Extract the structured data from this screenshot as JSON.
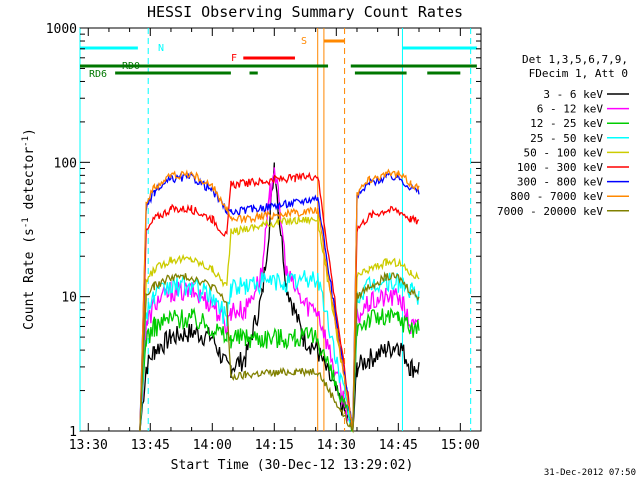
{
  "chart_data": {
    "type": "line",
    "title": "HESSI Observing Summary Count Rates",
    "xlabel": "Start Time (30-Dec-12 13:29:02)",
    "ylabel_main": "Count Rate (s",
    "ylabel_sup1": "-1",
    "ylabel_mid": " detector",
    "ylabel_sup2": "-1",
    "ylabel_end": ")",
    "yscale": "log",
    "ylim": [
      1,
      1000
    ],
    "xlim_minutes": [
      -2,
      95
    ],
    "x_ticks": [
      {
        "m": 0,
        "label": "13:30"
      },
      {
        "m": 15,
        "label": "13:45"
      },
      {
        "m": 30,
        "label": "14:00"
      },
      {
        "m": 45,
        "label": "14:15"
      },
      {
        "m": 60,
        "label": "14:30"
      },
      {
        "m": 75,
        "label": "14:45"
      },
      {
        "m": 90,
        "label": "15:00"
      }
    ],
    "y_ticks": [
      {
        "v": 1,
        "label": "1"
      },
      {
        "v": 10,
        "label": "10"
      },
      {
        "v": 100,
        "label": "100"
      },
      {
        "v": 1000,
        "label": "1000"
      }
    ],
    "legend_header": [
      "Det 1,3,5,6,7,9,",
      "FDecim 1, Att 0"
    ],
    "series": [
      {
        "name": "3 - 6 keV",
        "color": "#000000",
        "x": [
          12.5,
          14,
          16,
          20,
          25,
          30,
          33.5,
          34.5,
          38,
          42,
          44,
          45,
          46,
          48,
          52,
          55.5,
          64,
          65,
          68,
          72,
          75,
          76,
          78,
          80
        ],
        "y": [
          1,
          3,
          4,
          5,
          5.5,
          5,
          3,
          3,
          3.5,
          10,
          40,
          100,
          45,
          12,
          5,
          4,
          1,
          3,
          3.5,
          4,
          4.5,
          4,
          3,
          3
        ]
      },
      {
        "name": "6 - 12 keV",
        "color": "#ff00ff",
        "x": [
          12.5,
          14,
          16,
          20,
          25,
          30,
          33.5,
          34.5,
          38,
          42,
          44,
          45,
          46,
          48,
          52,
          55.5,
          64,
          65,
          68,
          72,
          75,
          76,
          78,
          80
        ],
        "y": [
          1,
          6,
          9,
          11,
          11,
          9,
          6,
          8,
          8,
          15,
          60,
          95,
          55,
          15,
          9,
          8,
          1,
          7,
          9,
          10,
          10,
          9,
          6,
          6
        ]
      },
      {
        "name": "12 - 25 keV",
        "color": "#00cc00",
        "x": [
          12.5,
          14,
          16,
          20,
          25,
          30,
          33.5,
          34.5,
          38,
          42,
          46,
          50,
          55.5,
          64,
          65,
          68,
          72,
          75,
          78,
          80
        ],
        "y": [
          1,
          5,
          6,
          7,
          7,
          6,
          5,
          5,
          5,
          5,
          5,
          5,
          5,
          1,
          6,
          7,
          7,
          7,
          6,
          6
        ]
      },
      {
        "name": "25 - 50 keV",
        "color": "#00ffff",
        "x": [
          12.5,
          14,
          16,
          20,
          25,
          30,
          33.5,
          34.5,
          38,
          42,
          46,
          50,
          55.5,
          64,
          65,
          68,
          72,
          75,
          78,
          80
        ],
        "y": [
          1,
          8,
          10,
          12,
          12,
          10,
          7,
          12,
          12,
          13,
          13,
          13,
          14,
          1,
          10,
          12,
          13,
          13,
          11,
          10
        ]
      },
      {
        "name": "50 - 100 keV",
        "color": "#cccc00",
        "x": [
          12.5,
          14,
          16,
          20,
          25,
          30,
          33.5,
          34.5,
          38,
          42,
          46,
          50,
          55.5,
          64,
          65,
          68,
          72,
          75,
          78,
          80
        ],
        "y": [
          1,
          13,
          16,
          19,
          19,
          16,
          12,
          30,
          32,
          34,
          36,
          37,
          38,
          1,
          14,
          16,
          18,
          18,
          15,
          14
        ]
      },
      {
        "name": "100 - 300 keV",
        "color": "#ff0000",
        "x": [
          12.5,
          14,
          16,
          20,
          25,
          30,
          33.5,
          34.5,
          38,
          42,
          46,
          50,
          55.5,
          64,
          65,
          68,
          72,
          75,
          78,
          80
        ],
        "y": [
          1,
          30,
          38,
          45,
          45,
          38,
          28,
          68,
          70,
          72,
          75,
          76,
          80,
          1,
          32,
          40,
          44,
          44,
          38,
          36
        ]
      },
      {
        "name": "300 - 800 keV",
        "color": "#0000ff",
        "x": [
          12.5,
          14,
          16,
          20,
          25,
          30,
          33.5,
          34.5,
          38,
          42,
          46,
          50,
          55.5,
          64,
          65,
          68,
          72,
          75,
          78,
          80
        ],
        "y": [
          1,
          45,
          60,
          75,
          78,
          62,
          44,
          42,
          44,
          46,
          48,
          50,
          55,
          1,
          55,
          70,
          78,
          78,
          65,
          60
        ]
      },
      {
        "name": "800 - 7000 keV",
        "color": "#ff8800",
        "x": [
          12.5,
          14,
          16,
          20,
          25,
          30,
          33.5,
          34.5,
          38,
          42,
          46,
          50,
          55.5,
          64,
          65,
          68,
          72,
          75,
          78,
          80
        ],
        "y": [
          1,
          50,
          65,
          80,
          82,
          66,
          45,
          37,
          38,
          40,
          41,
          42,
          44,
          1,
          60,
          75,
          82,
          82,
          70,
          65
        ]
      },
      {
        "name": "7000 - 20000 keV",
        "color": "#808000",
        "x": [
          12.5,
          14,
          16,
          20,
          25,
          30,
          33.5,
          34.5,
          38,
          42,
          46,
          50,
          55.5,
          64,
          65,
          68,
          72,
          75,
          78,
          80
        ],
        "y": [
          1,
          10,
          12,
          14,
          14,
          12,
          9,
          2.5,
          2.6,
          2.7,
          2.7,
          2.8,
          2.8,
          1,
          10,
          12,
          14,
          14,
          11,
          10
        ]
      }
    ],
    "flags": [
      {
        "label": "N",
        "color": "#00ffff",
        "segments": [
          [
            -2,
            12
          ],
          [
            76,
            94
          ]
        ]
      },
      {
        "label": "F",
        "color": "#ff0000",
        "segments": [
          [
            37.5,
            50
          ]
        ]
      },
      {
        "label": "S",
        "color": "#ff8800",
        "segments": [
          [
            57,
            62
          ]
        ]
      },
      {
        "label": "RD0",
        "color": "#007700",
        "segments": [
          [
            -2,
            58
          ],
          [
            63.5,
            94
          ]
        ]
      },
      {
        "label": "RD6",
        "color": "#007700",
        "segments": [
          [
            6.5,
            34.5
          ],
          [
            39,
            41
          ],
          [
            64.5,
            77
          ],
          [
            82,
            90
          ]
        ]
      }
    ],
    "vertical_lines": [
      {
        "m": -2,
        "color": "#00ffff",
        "style": "solid"
      },
      {
        "m": 76,
        "color": "#00ffff",
        "style": "solid"
      },
      {
        "m": 14.5,
        "color": "#00ffff",
        "style": "dashed"
      },
      {
        "m": 92.5,
        "color": "#00ffff",
        "style": "dashed"
      },
      {
        "m": 55.5,
        "color": "#ff8800",
        "style": "solid"
      },
      {
        "m": 57,
        "color": "#ff8800",
        "style": "solid"
      },
      {
        "m": 62,
        "color": "#ff8800",
        "style": "dashed"
      }
    ],
    "footer_date": "31-Dec-2012 07:50"
  }
}
